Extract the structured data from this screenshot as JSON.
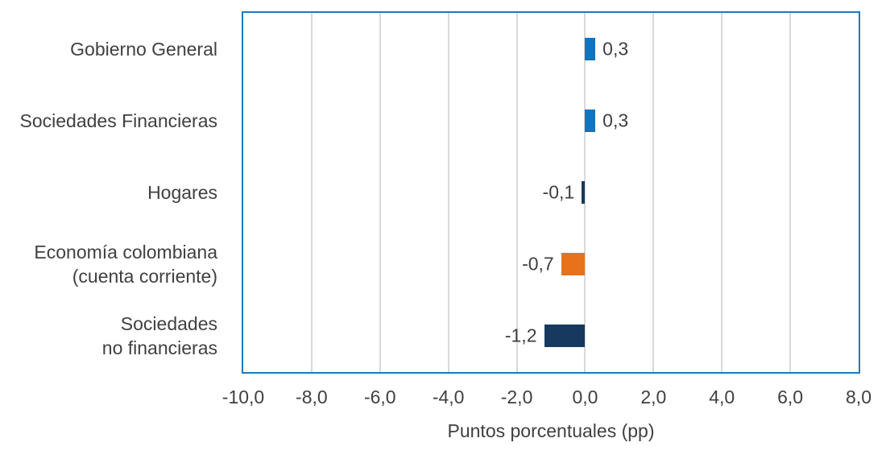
{
  "chart_data": {
    "type": "bar",
    "orientation": "horizontal",
    "title": "",
    "xlabel": "Puntos porcentuales (pp)",
    "ylabel": "",
    "xlim": [
      -10,
      8
    ],
    "xtick_values": [
      -10,
      -8,
      -6,
      -4,
      -2,
      0,
      2,
      4,
      6,
      8
    ],
    "xtick_labels": [
      "-10,0",
      "-8,0",
      "-6,0",
      "-4,0",
      "-2,0",
      "0,0",
      "2,0",
      "4,0",
      "6,0",
      "8,0"
    ],
    "grid": true,
    "legend": false,
    "decimal_separator": ",",
    "categories": [
      "Gobierno General",
      "Sociedades Financieras",
      "Hogares",
      "Economía colombiana (cuenta corriente)",
      "Sociedades no financieras"
    ],
    "category_label_lines": [
      [
        "Gobierno General"
      ],
      [
        "Sociedades Financieras"
      ],
      [
        "Hogares"
      ],
      [
        "Economía colombiana",
        "(cuenta corriente)"
      ],
      [
        "Sociedades",
        "no financieras"
      ]
    ],
    "values": [
      0.3,
      0.3,
      -0.1,
      -0.7,
      -1.2
    ],
    "value_labels": [
      "0,3",
      "0,3",
      "-0,1",
      "-0,7",
      "-1,2"
    ],
    "bar_colors": [
      "#1273BE",
      "#1273BE",
      "#17395F",
      "#E8721C",
      "#17395F"
    ]
  },
  "colors": {
    "plot_border": "#1F78C2",
    "gridline": "#D9D9D9",
    "text": "#404040",
    "background": "#FFFFFF",
    "positive_bar_blue": "#1273BE",
    "negative_bar_navy": "#17395F",
    "negative_bar_orange": "#E8721C"
  }
}
